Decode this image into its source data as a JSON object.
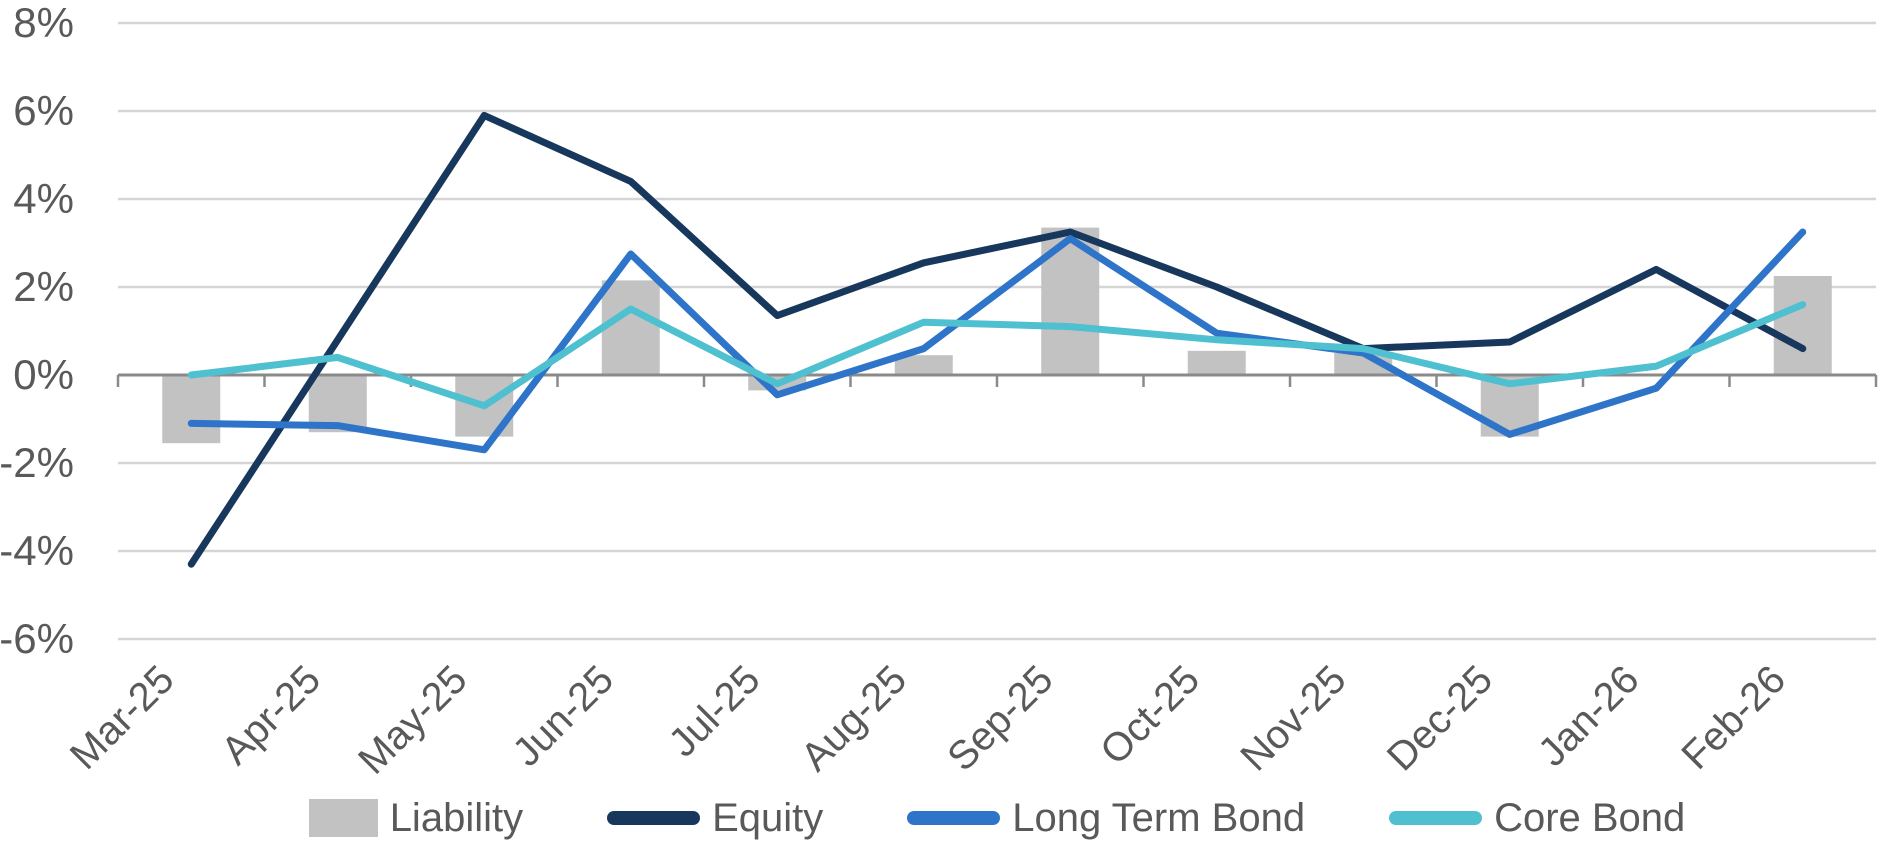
{
  "chart_data": {
    "type": "combo-bar-line",
    "title": "",
    "xlabel": "",
    "ylabel": "",
    "unit": "%",
    "categories": [
      "Mar-25",
      "Apr-25",
      "May-25",
      "Jun-25",
      "Jul-25",
      "Aug-25",
      "Sep-25",
      "Oct-25",
      "Nov-25",
      "Dec-25",
      "Jan-26",
      "Feb-26"
    ],
    "series": [
      {
        "name": "Liability",
        "type": "bar",
        "color": "#c2c2c2",
        "values": [
          -1.55,
          -1.3,
          -1.4,
          2.15,
          -0.35,
          0.45,
          3.35,
          0.55,
          0.5,
          -1.4,
          0,
          2.25
        ]
      },
      {
        "name": "Equity",
        "type": "line",
        "color": "#17375c",
        "values": [
          -4.3,
          0.8,
          5.9,
          4.4,
          1.35,
          2.55,
          3.25,
          2.0,
          0.6,
          0.75,
          2.4,
          0.6
        ]
      },
      {
        "name": "Long Term Bond",
        "type": "line",
        "color": "#2e74c8",
        "values": [
          -1.1,
          -1.15,
          -1.7,
          2.75,
          -0.45,
          0.6,
          3.1,
          0.95,
          0.5,
          -1.35,
          -0.3,
          3.25
        ]
      },
      {
        "name": "Core Bond",
        "type": "line",
        "color": "#4fc0d0",
        "values": [
          0.0,
          0.4,
          -0.7,
          1.5,
          -0.2,
          1.2,
          1.1,
          0.8,
          0.6,
          -0.2,
          0.2,
          1.6
        ]
      }
    ],
    "y_ticks": [
      {
        "label": "8%",
        "value": 8
      },
      {
        "label": "6%",
        "value": 6
      },
      {
        "label": "4%",
        "value": 4
      },
      {
        "label": "2%",
        "value": 2
      },
      {
        "label": "0%",
        "value": 0
      },
      {
        "label": "-2%",
        "value": -2
      },
      {
        "label": "-4%",
        "value": -4
      },
      {
        "label": "-6%",
        "value": -6
      }
    ],
    "ylim": [
      -6,
      8
    ],
    "grid": "horizontal",
    "legend_position": "bottom",
    "x_tick_style": "rotated",
    "colors": {
      "grid_line": "#d5d5d5",
      "axis_line": "#8a8a8a",
      "tick_text": "#595959"
    }
  }
}
